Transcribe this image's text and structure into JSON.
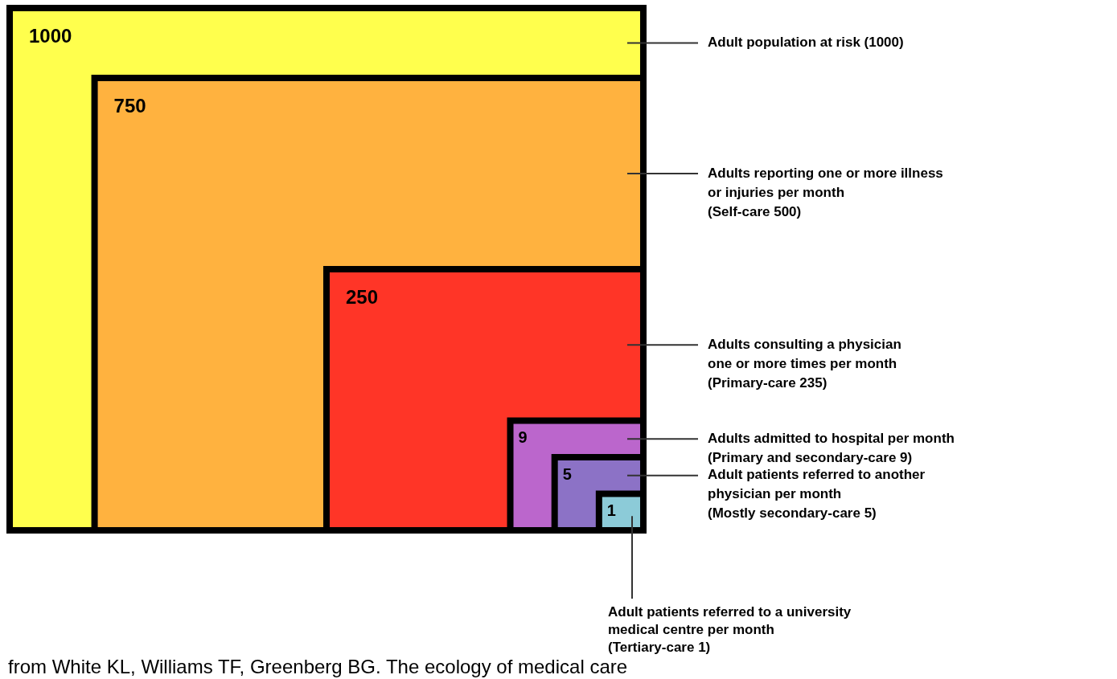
{
  "chart_data": {
    "type": "other",
    "categories": [
      "Adult population at risk (1000)",
      "Adults reporting one or more illness\nor injuries per month\n(Self-care 500)",
      "Adults consulting a physician\none or more times per month\n(Primary-care 235)",
      "Adults admitted to hospital per month\n(Primary and secondary-care 9)",
      "Adult patients referred to another\nphysician per month\n(Mostly secondary-care 5)",
      "Adult patients referred to a university\nmedical centre per month\n(Tertiary-care 1)"
    ],
    "values": [
      1000,
      750,
      250,
      9,
      5,
      1
    ],
    "colors": [
      "#ffff4d",
      "#ffb23f",
      "#ff3527",
      "#bb66cc",
      "#8c72c6",
      "#8ccbd8"
    ],
    "data_labels": true,
    "annotations": [
      "from White KL, Williams TF, Greenberg BG. The ecology of medical care"
    ]
  }
}
